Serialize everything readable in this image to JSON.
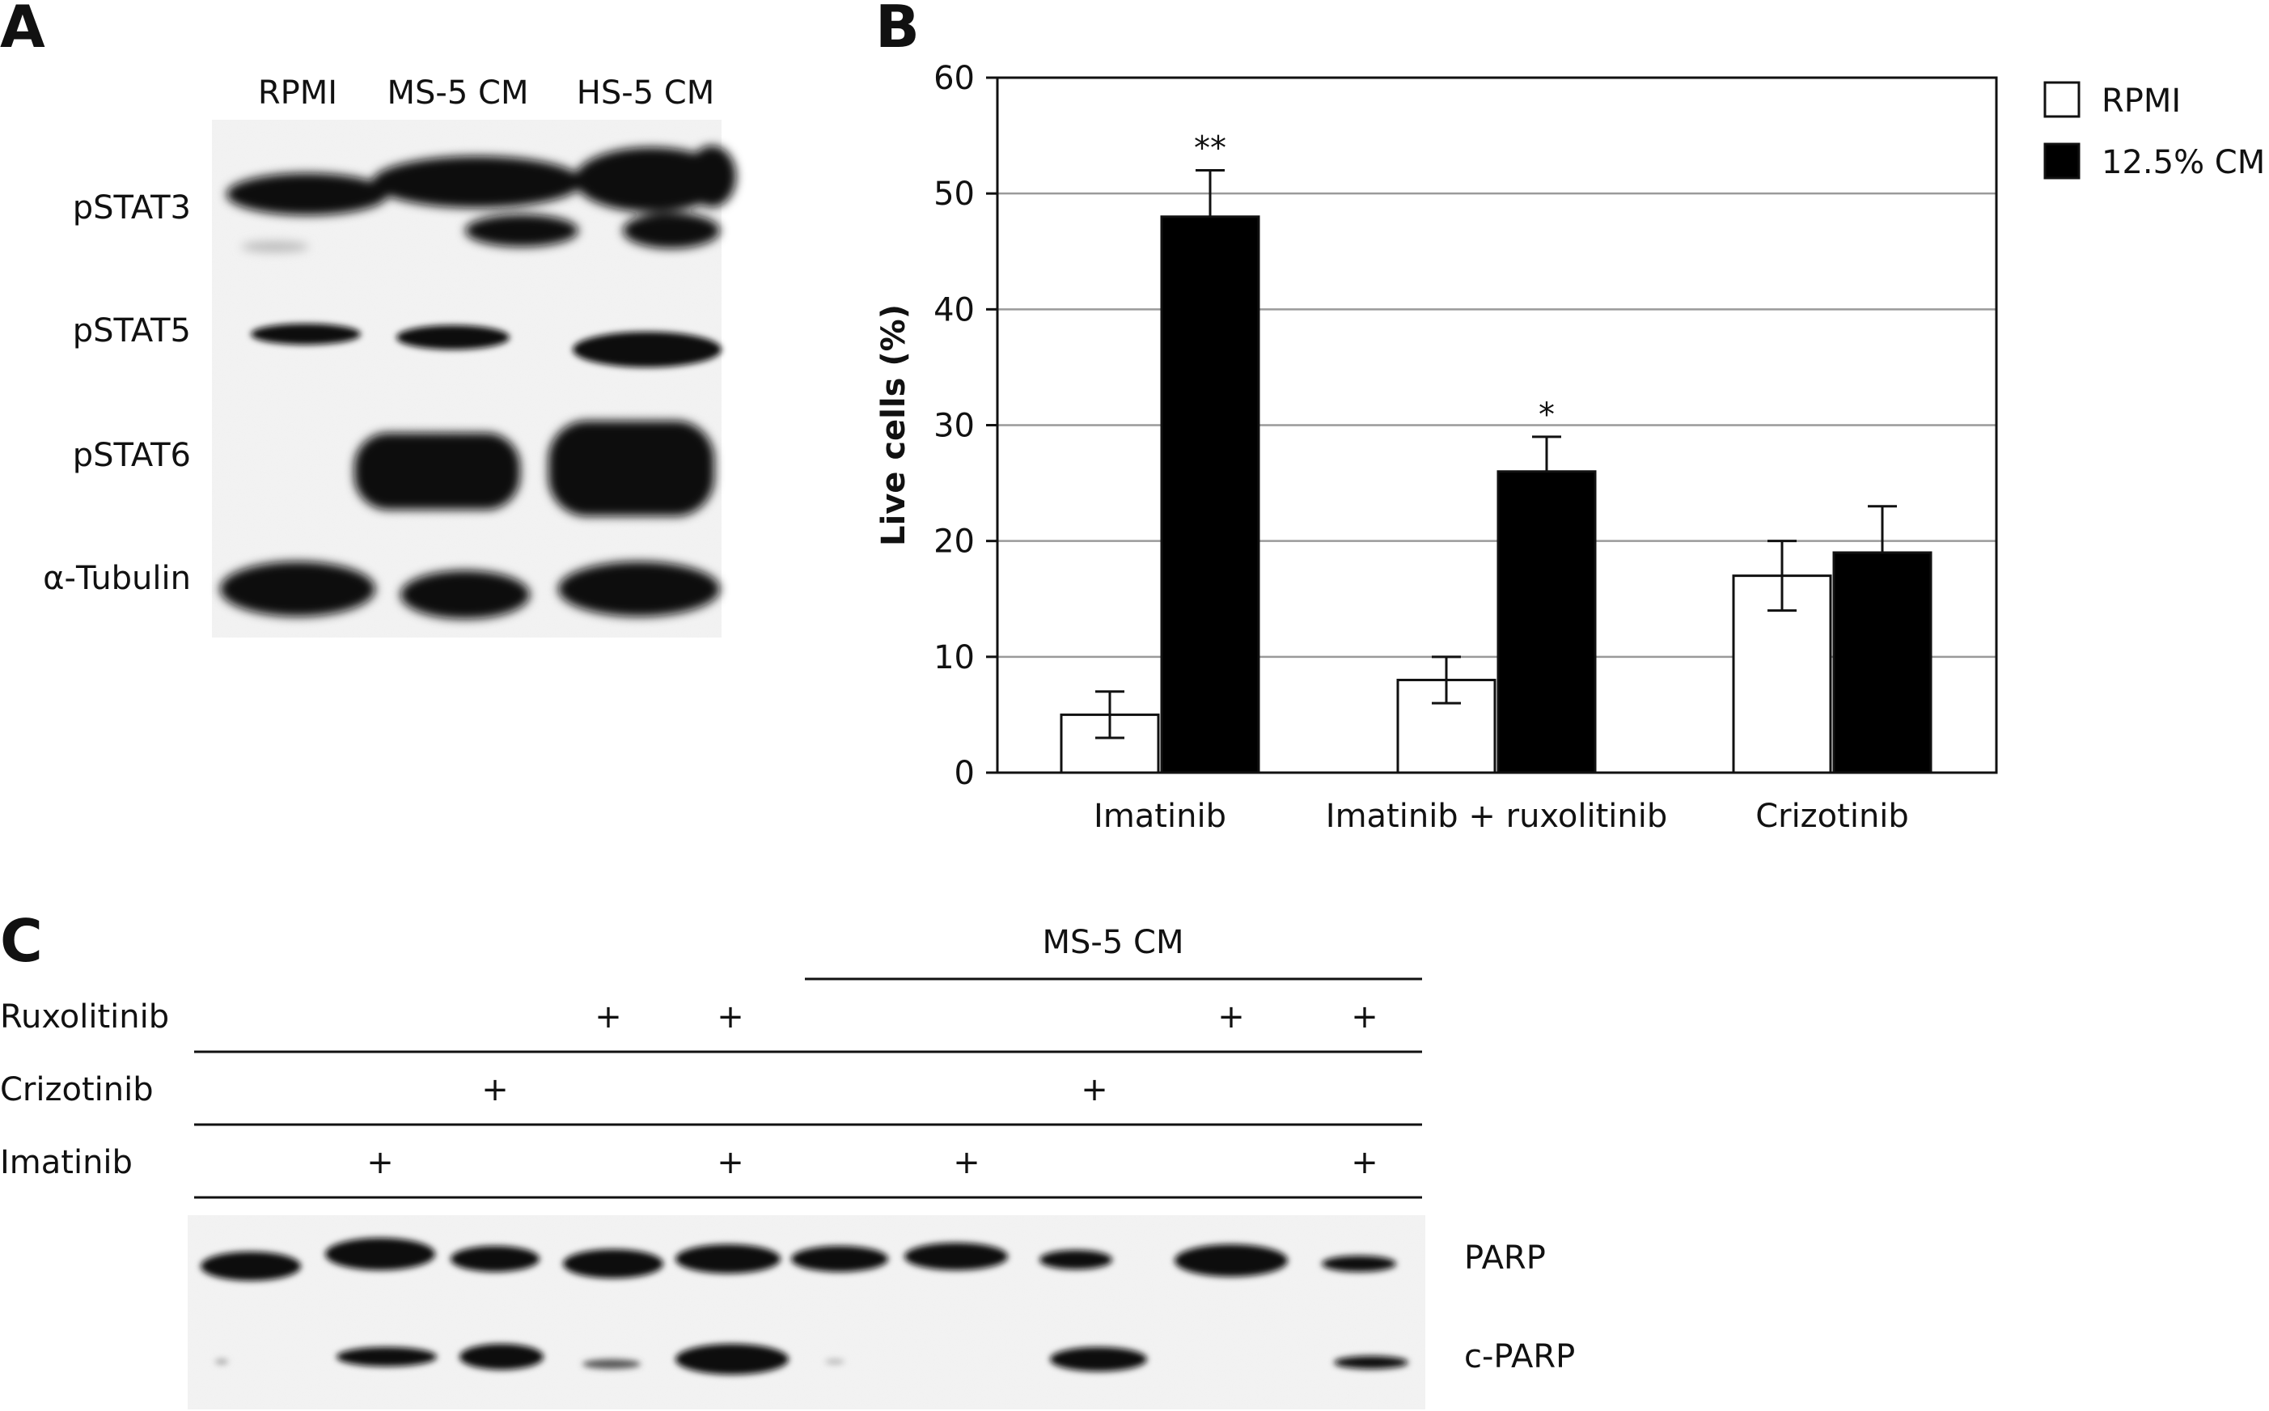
{
  "panel_a": {
    "label": "A",
    "lanes": [
      "RPMI",
      "MS-5 CM",
      "HS-5 CM"
    ],
    "rows": [
      "pSTAT3",
      "pSTAT5",
      "pSTAT6",
      "α-Tubulin"
    ]
  },
  "panel_b": {
    "label": "B",
    "chart_data": {
      "type": "bar",
      "categories": [
        "Imatinib",
        "Imatinib + ruxolitinib",
        "Crizotinib"
      ],
      "series": [
        {
          "name": "RPMI",
          "color": "#ffffff",
          "values": [
            5,
            8,
            17
          ],
          "errors": [
            2,
            2,
            3
          ]
        },
        {
          "name": "12.5% CM",
          "color": "#000000",
          "values": [
            48,
            26,
            19
          ],
          "errors": [
            4,
            3,
            4
          ]
        }
      ],
      "annotations": [
        "**",
        "*",
        ""
      ],
      "ylabel": "Live cells (%)",
      "ylim": [
        0,
        60
      ],
      "yticks": [
        "0",
        "10",
        "20",
        "30",
        "40",
        "50",
        "60"
      ],
      "grid": true,
      "legend_position": "top-right"
    }
  },
  "panel_c": {
    "label": "C",
    "group_label": "MS-5 CM",
    "treatments": [
      {
        "name": "Ruxolitinib",
        "plus_lanes": [
          4,
          5,
          9,
          10
        ]
      },
      {
        "name": "Crizotinib",
        "plus_lanes": [
          3,
          8
        ]
      },
      {
        "name": "Imatinib",
        "plus_lanes": [
          2,
          5,
          7,
          10
        ]
      }
    ],
    "plus_symbol": "+",
    "bands": [
      "PARP",
      "c-PARP"
    ]
  }
}
